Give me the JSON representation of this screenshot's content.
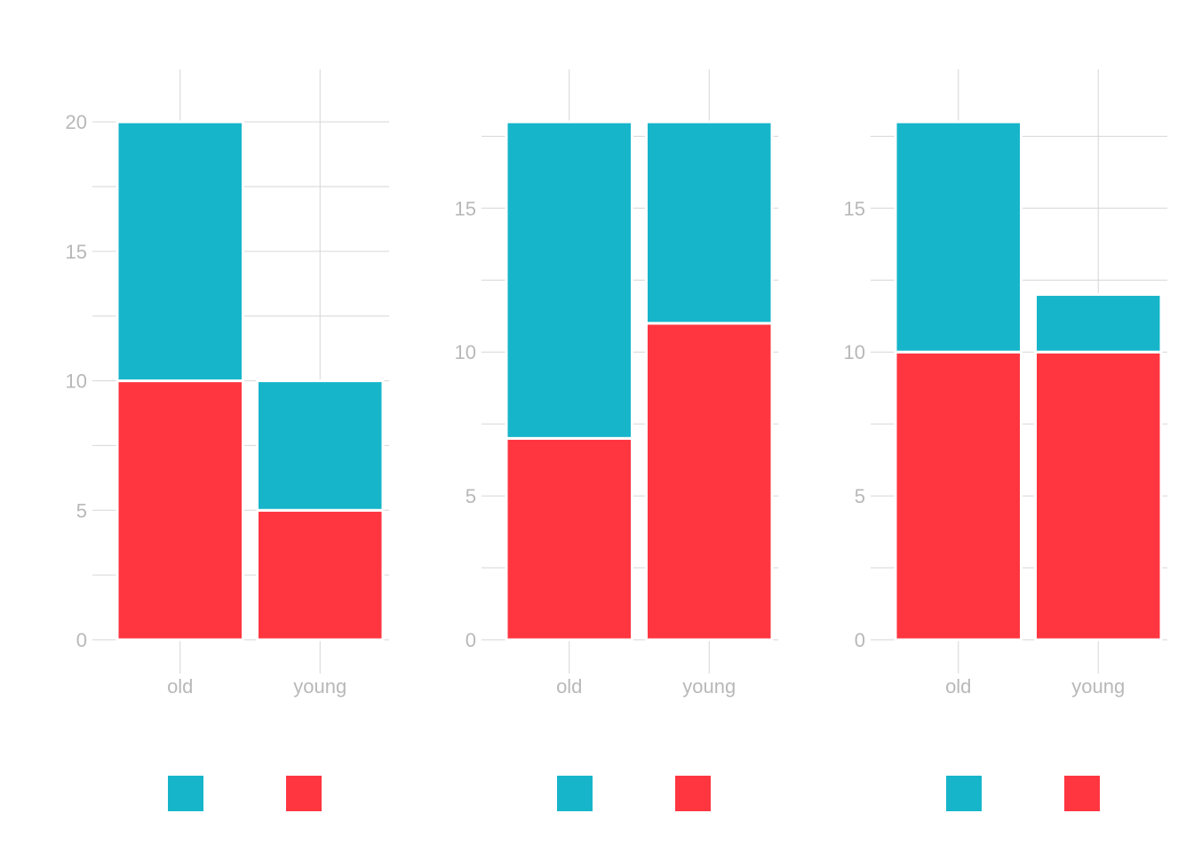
{
  "chart_data": [
    {
      "type": "bar",
      "stacked": true,
      "categories": [
        "old",
        "young"
      ],
      "series": [
        {
          "color": "#ff3640",
          "values": [
            10,
            5
          ]
        },
        {
          "color": "#17b5ca",
          "values": [
            10,
            5
          ]
        }
      ],
      "ylim": [
        0,
        21
      ],
      "yticks": [
        0,
        5,
        10,
        15,
        20
      ],
      "grid": true
    },
    {
      "type": "bar",
      "stacked": true,
      "categories": [
        "old",
        "young"
      ],
      "series": [
        {
          "color": "#ff3640",
          "values": [
            7,
            11
          ]
        },
        {
          "color": "#17b5ca",
          "values": [
            11,
            7
          ]
        }
      ],
      "ylim": [
        0,
        18.9
      ],
      "yticks": [
        0,
        5,
        10,
        15
      ],
      "grid": true
    },
    {
      "type": "bar",
      "stacked": true,
      "categories": [
        "old",
        "young"
      ],
      "series": [
        {
          "color": "#ff3640",
          "values": [
            10,
            10
          ]
        },
        {
          "color": "#17b5ca",
          "values": [
            8,
            2
          ]
        }
      ],
      "ylim": [
        0,
        18.9
      ],
      "yticks": [
        0,
        5,
        10,
        15
      ],
      "grid": true
    }
  ]
}
